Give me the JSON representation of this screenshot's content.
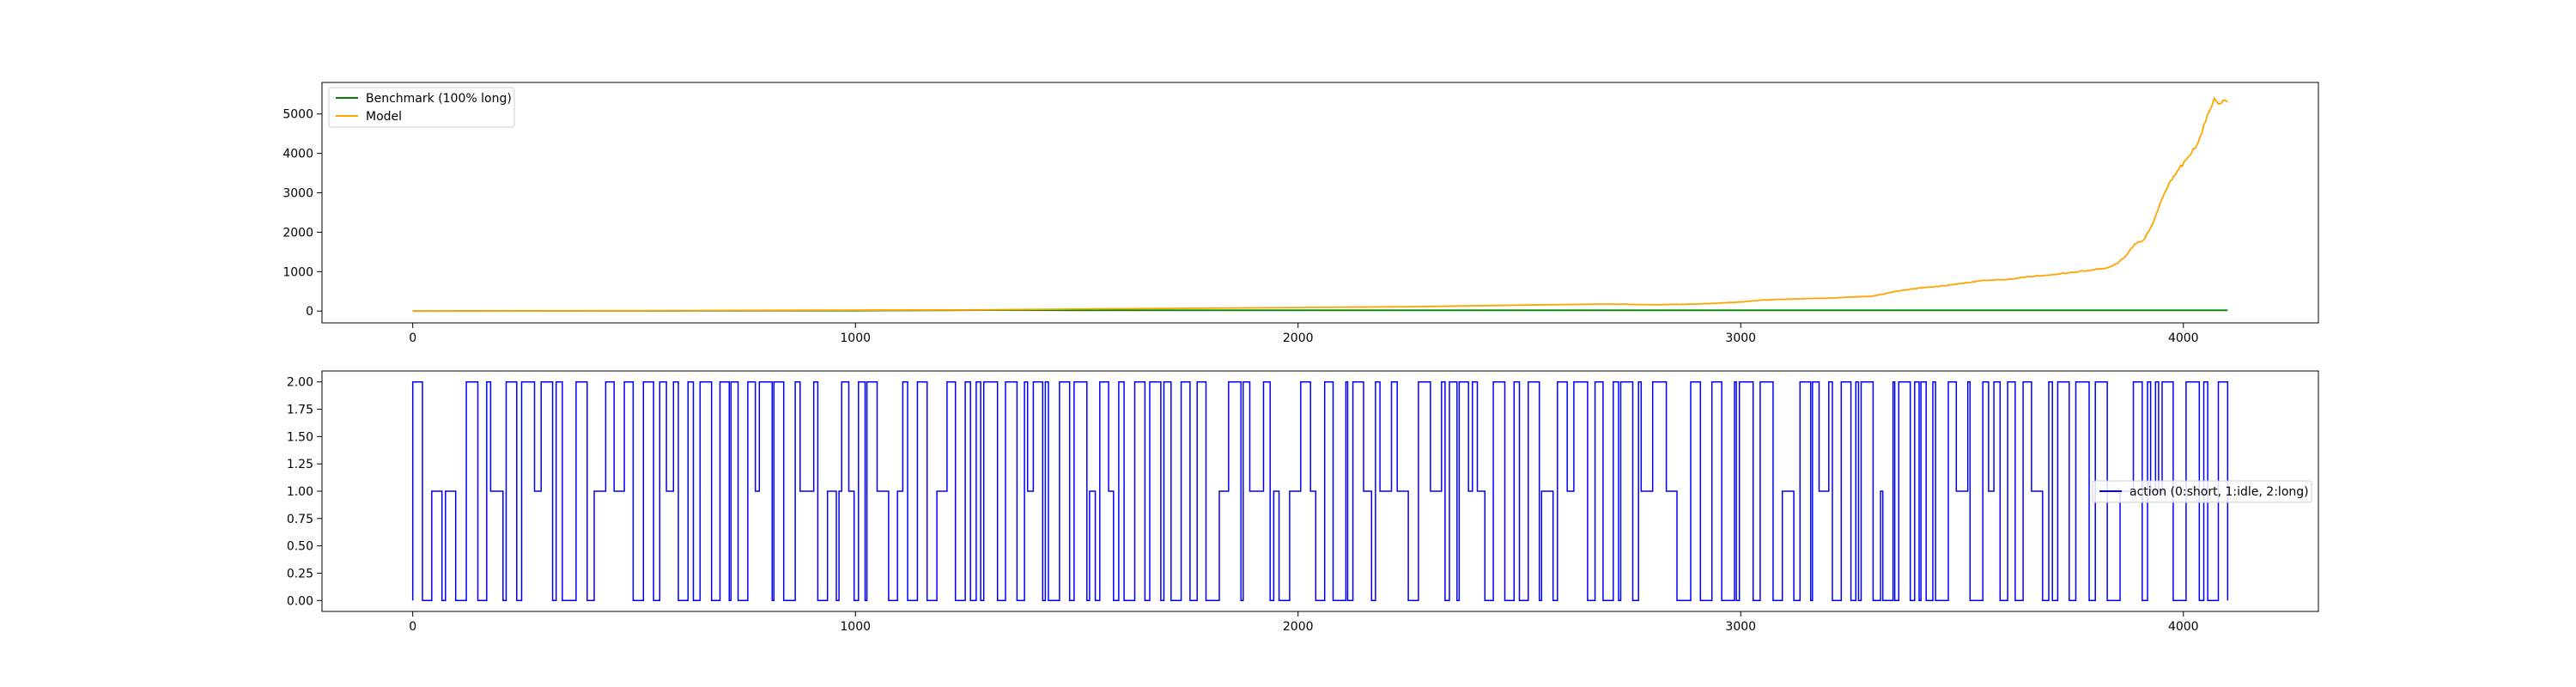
{
  "figure": {
    "background": "#ffffff"
  },
  "chart_data": [
    {
      "type": "line",
      "title": "",
      "xlabel": "",
      "ylabel": "",
      "xlim": [
        -205,
        4305
      ],
      "ylim": [
        -300,
        5800
      ],
      "xticks": [
        0,
        1000,
        2000,
        3000,
        4000
      ],
      "yticks": [
        0,
        1000,
        2000,
        3000,
        4000,
        5000
      ],
      "grid": false,
      "legend": {
        "placement": "upper left"
      },
      "series": [
        {
          "name": "Benchmark (100% long)",
          "color": "#008000",
          "x": [
            0,
            500,
            1000,
            1200,
            1300,
            1500,
            2000,
            2500,
            3000,
            3500,
            4000,
            4100
          ],
          "y": [
            0,
            5,
            12,
            18,
            25,
            20,
            20,
            20,
            20,
            20,
            20,
            20
          ]
        },
        {
          "name": "Model",
          "color": "#ffa500",
          "x": [
            0,
            250,
            500,
            750,
            1000,
            1250,
            1500,
            1750,
            2000,
            2250,
            2500,
            2700,
            2800,
            2900,
            2950,
            3000,
            3050,
            3100,
            3200,
            3300,
            3350,
            3400,
            3450,
            3500,
            3550,
            3600,
            3650,
            3700,
            3750,
            3800,
            3830,
            3850,
            3870,
            3890,
            3910,
            3930,
            3950,
            3970,
            3990,
            4010,
            4030,
            4050,
            4060,
            4070,
            4080,
            4090,
            4100
          ],
          "y": [
            0,
            5,
            10,
            15,
            25,
            30,
            50,
            70,
            90,
            110,
            150,
            180,
            160,
            180,
            200,
            230,
            280,
            300,
            330,
            380,
            500,
            580,
            630,
            700,
            780,
            800,
            870,
            920,
            980,
            1050,
            1100,
            1200,
            1400,
            1700,
            1800,
            2200,
            2800,
            3300,
            3600,
            3900,
            4200,
            4800,
            5100,
            5400,
            5250,
            5350,
            5300
          ]
        }
      ]
    },
    {
      "type": "line",
      "title": "",
      "xlabel": "",
      "ylabel": "",
      "xlim": [
        -205,
        4305
      ],
      "ylim": [
        -0.1,
        2.1
      ],
      "xticks": [
        0,
        1000,
        2000,
        3000,
        4000
      ],
      "yticks": [
        "0.00",
        "0.25",
        "0.50",
        "0.75",
        "1.00",
        "1.25",
        "1.50",
        "1.75",
        "2.00"
      ],
      "grid": false,
      "legend": {
        "placement": "center right"
      },
      "series": [
        {
          "name": "action (0:short, 1:idle, 2:long)",
          "color": "#0000ff",
          "step": true,
          "x_max": 4100
        }
      ]
    }
  ]
}
